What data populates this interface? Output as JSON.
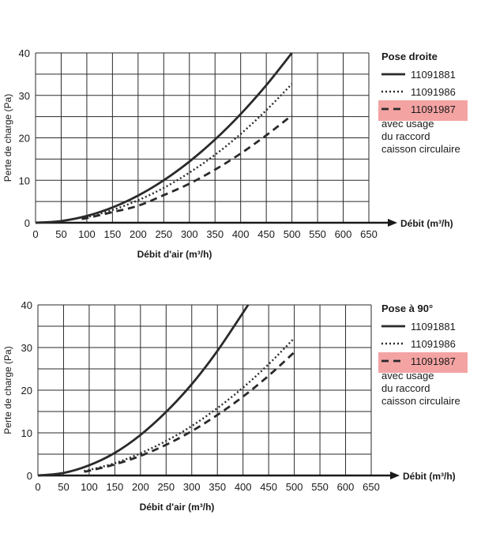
{
  "chart_data": [
    {
      "type": "line",
      "title": "Pose droite",
      "xlabel": "Débit d'air (m³/h)",
      "xaxis_arrow_label": "Débit (m³/h)",
      "ylabel": "Perte de charge (Pa)",
      "xlim": [
        0,
        650
      ],
      "ylim": [
        0,
        40
      ],
      "xticks": [
        0,
        50,
        100,
        150,
        200,
        250,
        300,
        350,
        400,
        450,
        500,
        550,
        600,
        650
      ],
      "yticks": [
        0,
        10,
        20,
        30,
        40
      ],
      "grid": true,
      "legend_position": "right",
      "legend_note": [
        "avec usage",
        "du raccord",
        "caisson circulaire"
      ],
      "series": [
        {
          "name": "11091881",
          "style": "solid",
          "color": "#2a2a2a",
          "highlight": false,
          "x": [
            0,
            50,
            100,
            150,
            200,
            250,
            300,
            350,
            400,
            450,
            500
          ],
          "y": [
            0,
            0.4,
            1.6,
            3.6,
            6.4,
            10,
            14.4,
            19.6,
            25.6,
            32.4,
            40
          ]
        },
        {
          "name": "11091986",
          "style": "dotted",
          "color": "#2a2a2a",
          "highlight": false,
          "x": [
            90,
            100,
            150,
            200,
            250,
            300,
            350,
            400,
            450,
            500
          ],
          "y": [
            1.1,
            1.3,
            3.0,
            5.3,
            8.2,
            11.8,
            16.0,
            20.9,
            26.5,
            32.7
          ]
        },
        {
          "name": "11091987",
          "style": "dashed",
          "color": "#2a2a2a",
          "highlight": true,
          "x": [
            90,
            100,
            150,
            200,
            250,
            300,
            350,
            400,
            450,
            500
          ],
          "y": [
            0.9,
            1.1,
            2.5,
            4.0,
            6.5,
            9.2,
            12.5,
            16.3,
            20.6,
            25.3
          ]
        }
      ]
    },
    {
      "type": "line",
      "title": "Pose à 90°",
      "xlabel": "Débit d'air (m³/h)",
      "xaxis_arrow_label": "Débit (m³/h)",
      "ylabel": "Perte de charge (Pa)",
      "xlim": [
        0,
        650
      ],
      "ylim": [
        0,
        40
      ],
      "xticks": [
        0,
        50,
        100,
        150,
        200,
        250,
        300,
        350,
        400,
        450,
        500,
        550,
        600,
        650
      ],
      "yticks": [
        0,
        10,
        20,
        30,
        40
      ],
      "grid": true,
      "legend_position": "right",
      "legend_note": [
        "avec usage",
        "du raccord",
        "caisson circulaire"
      ],
      "series": [
        {
          "name": "11091881",
          "style": "solid",
          "color": "#2a2a2a",
          "highlight": false,
          "x": [
            0,
            50,
            100,
            150,
            200,
            250,
            300,
            350,
            410
          ],
          "y": [
            0,
            0.6,
            2.4,
            5.3,
            9.5,
            14.9,
            21.4,
            29.2,
            40
          ]
        },
        {
          "name": "11091986",
          "style": "dotted",
          "color": "#2a2a2a",
          "highlight": false,
          "x": [
            90,
            100,
            150,
            200,
            250,
            300,
            350,
            400,
            450,
            500
          ],
          "y": [
            1.1,
            1.3,
            2.9,
            5.2,
            8.1,
            11.6,
            15.8,
            20.6,
            26.1,
            32.2
          ]
        },
        {
          "name": "11091987",
          "style": "dashed",
          "color": "#2a2a2a",
          "highlight": true,
          "x": [
            90,
            100,
            150,
            200,
            250,
            300,
            350,
            400,
            450,
            500
          ],
          "y": [
            0.9,
            1.1,
            2.6,
            4.6,
            7.2,
            10.4,
            14.2,
            18.5,
            23.4,
            28.9
          ]
        }
      ]
    }
  ],
  "colors": {
    "line": "#2a2a2a",
    "grid": "#2a2a2a",
    "highlight": "#f4a3a3",
    "background": "#ffffff"
  }
}
